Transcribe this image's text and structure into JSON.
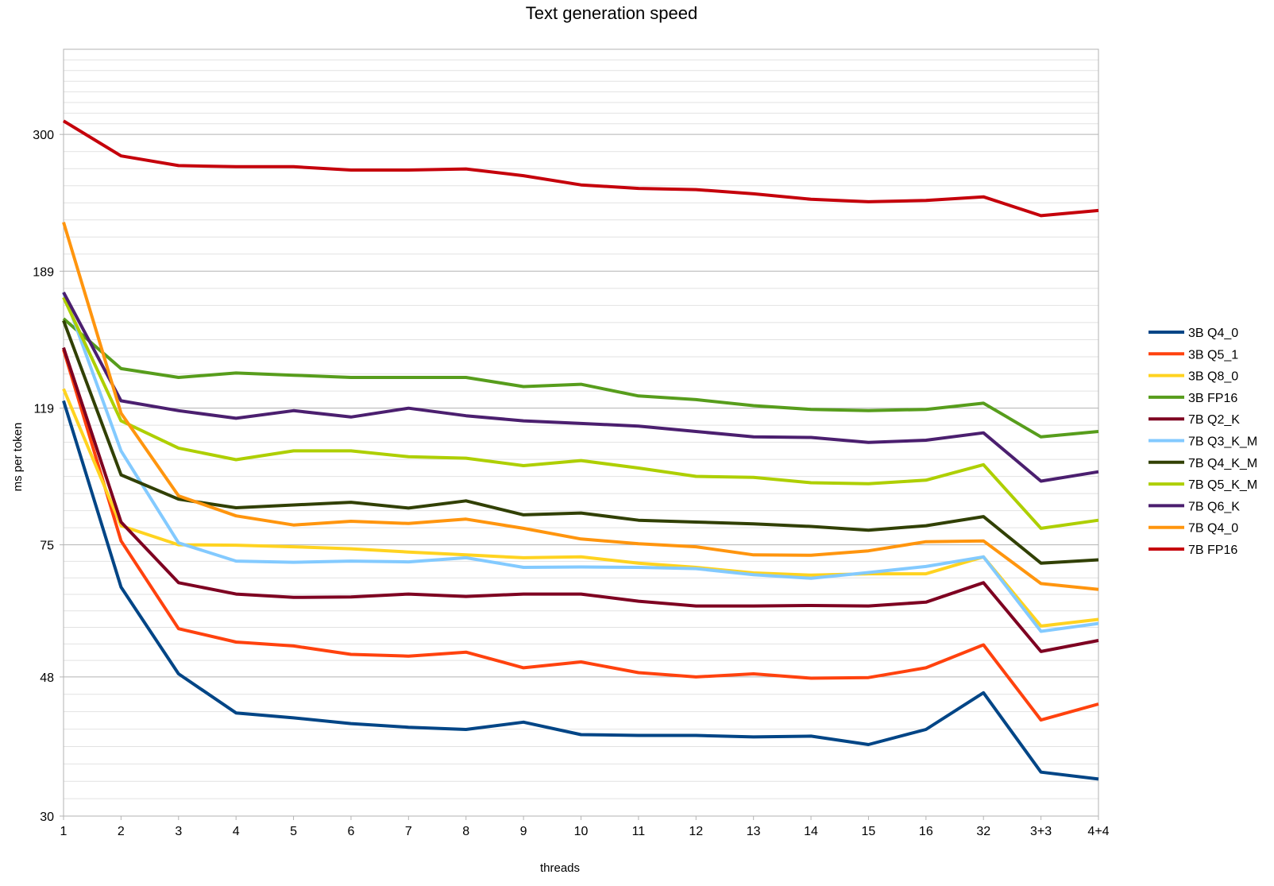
{
  "chart_data": {
    "type": "line",
    "title": "Text generation speed",
    "xlabel": "threads",
    "ylabel": "ms per token",
    "y_scale": "log",
    "ylim": [
      30,
      400
    ],
    "y_ticks": [
      "300",
      "189",
      "119",
      "75",
      "48",
      "30"
    ],
    "y_tick_values": [
      300,
      189,
      119,
      75,
      48,
      30
    ],
    "grid": true,
    "legend_position": "right",
    "categories": [
      "1",
      "2",
      "3",
      "4",
      "5",
      "6",
      "7",
      "8",
      "9",
      "10",
      "11",
      "12",
      "13",
      "14",
      "15",
      "16",
      "32",
      "3+3",
      "4+4"
    ],
    "series": [
      {
        "name": "3B Q4_0",
        "color": "#004586",
        "values": [
          122,
          65,
          48.5,
          42.5,
          41.8,
          41.0,
          40.5,
          40.2,
          41.2,
          39.5,
          39.4,
          39.4,
          39.2,
          39.3,
          38.2,
          40.2,
          45.5,
          34.8,
          34.0
        ]
      },
      {
        "name": "3B Q5_1",
        "color": "#ff420e",
        "values": [
          145,
          76,
          56.5,
          54.0,
          53.3,
          51.8,
          51.5,
          52.2,
          49.5,
          50.5,
          48.7,
          48.0,
          48.5,
          47.8,
          47.9,
          49.5,
          53.5,
          41.5,
          43.8
        ]
      },
      {
        "name": "3B Q8_0",
        "color": "#ffd320",
        "values": [
          127,
          80,
          75.0,
          74.9,
          74.5,
          74.0,
          73.2,
          72.5,
          71.8,
          72.0,
          70.5,
          69.5,
          68.2,
          67.7,
          68.0,
          68.0,
          72.0,
          57.0,
          58.3
        ]
      },
      {
        "name": "3B FP16",
        "color": "#579d1c",
        "values": [
          161,
          136,
          132,
          134,
          133,
          132,
          132,
          132,
          128,
          129,
          124,
          122.5,
          120,
          118.5,
          118,
          118.5,
          121,
          108,
          110
        ]
      },
      {
        "name": "7B Q2_K",
        "color": "#7e0021",
        "values": [
          146,
          81,
          66,
          63.5,
          62.8,
          62.9,
          63.5,
          63.0,
          63.5,
          63.5,
          62.0,
          61.0,
          61.0,
          61.1,
          61.0,
          61.8,
          66.0,
          52.3,
          54.3
        ]
      },
      {
        "name": "7B Q3_K_M",
        "color": "#83caff",
        "values": [
          176,
          103,
          75.5,
          71.0,
          70.7,
          71.0,
          70.8,
          71.8,
          69.5,
          69.6,
          69.5,
          69.2,
          67.8,
          67.0,
          68.3,
          69.7,
          72.0,
          56.0,
          57.5
        ]
      },
      {
        "name": "7B Q4_K_M",
        "color": "#314004",
        "values": [
          160,
          95,
          87.5,
          85.0,
          85.8,
          86.6,
          84.9,
          87.0,
          83.0,
          83.5,
          81.5,
          81.0,
          80.5,
          79.8,
          78.8,
          80.0,
          82.5,
          70.5,
          71.3
        ]
      },
      {
        "name": "7B Q5_K_M",
        "color": "#aecf00",
        "values": [
          173,
          114,
          104,
          100,
          103,
          103,
          101,
          100.5,
          98,
          99.7,
          97.2,
          94.5,
          94.2,
          92.5,
          92.2,
          93.3,
          98.3,
          79.3,
          81.5
        ]
      },
      {
        "name": "7B Q6_K",
        "color": "#4b1f6f",
        "values": [
          176,
          122,
          118,
          115,
          118,
          115.5,
          119,
          116,
          114,
          113,
          112,
          110,
          108,
          107.8,
          106,
          106.8,
          109.5,
          93,
          96
        ]
      },
      {
        "name": "7B Q4_0",
        "color": "#ff950e",
        "values": [
          223,
          117,
          88.5,
          82.7,
          80.2,
          81.2,
          80.6,
          81.8,
          79.3,
          76.5,
          75.3,
          74.5,
          72.5,
          72.4,
          73.5,
          75.8,
          76.0,
          65.8,
          64.5
        ]
      },
      {
        "name": "7B FP16",
        "color": "#c5000b",
        "values": [
          314,
          279,
          270,
          269,
          269,
          266,
          266,
          267,
          261,
          253,
          250,
          249,
          245.5,
          241,
          239,
          240,
          243,
          228,
          232
        ]
      }
    ]
  }
}
